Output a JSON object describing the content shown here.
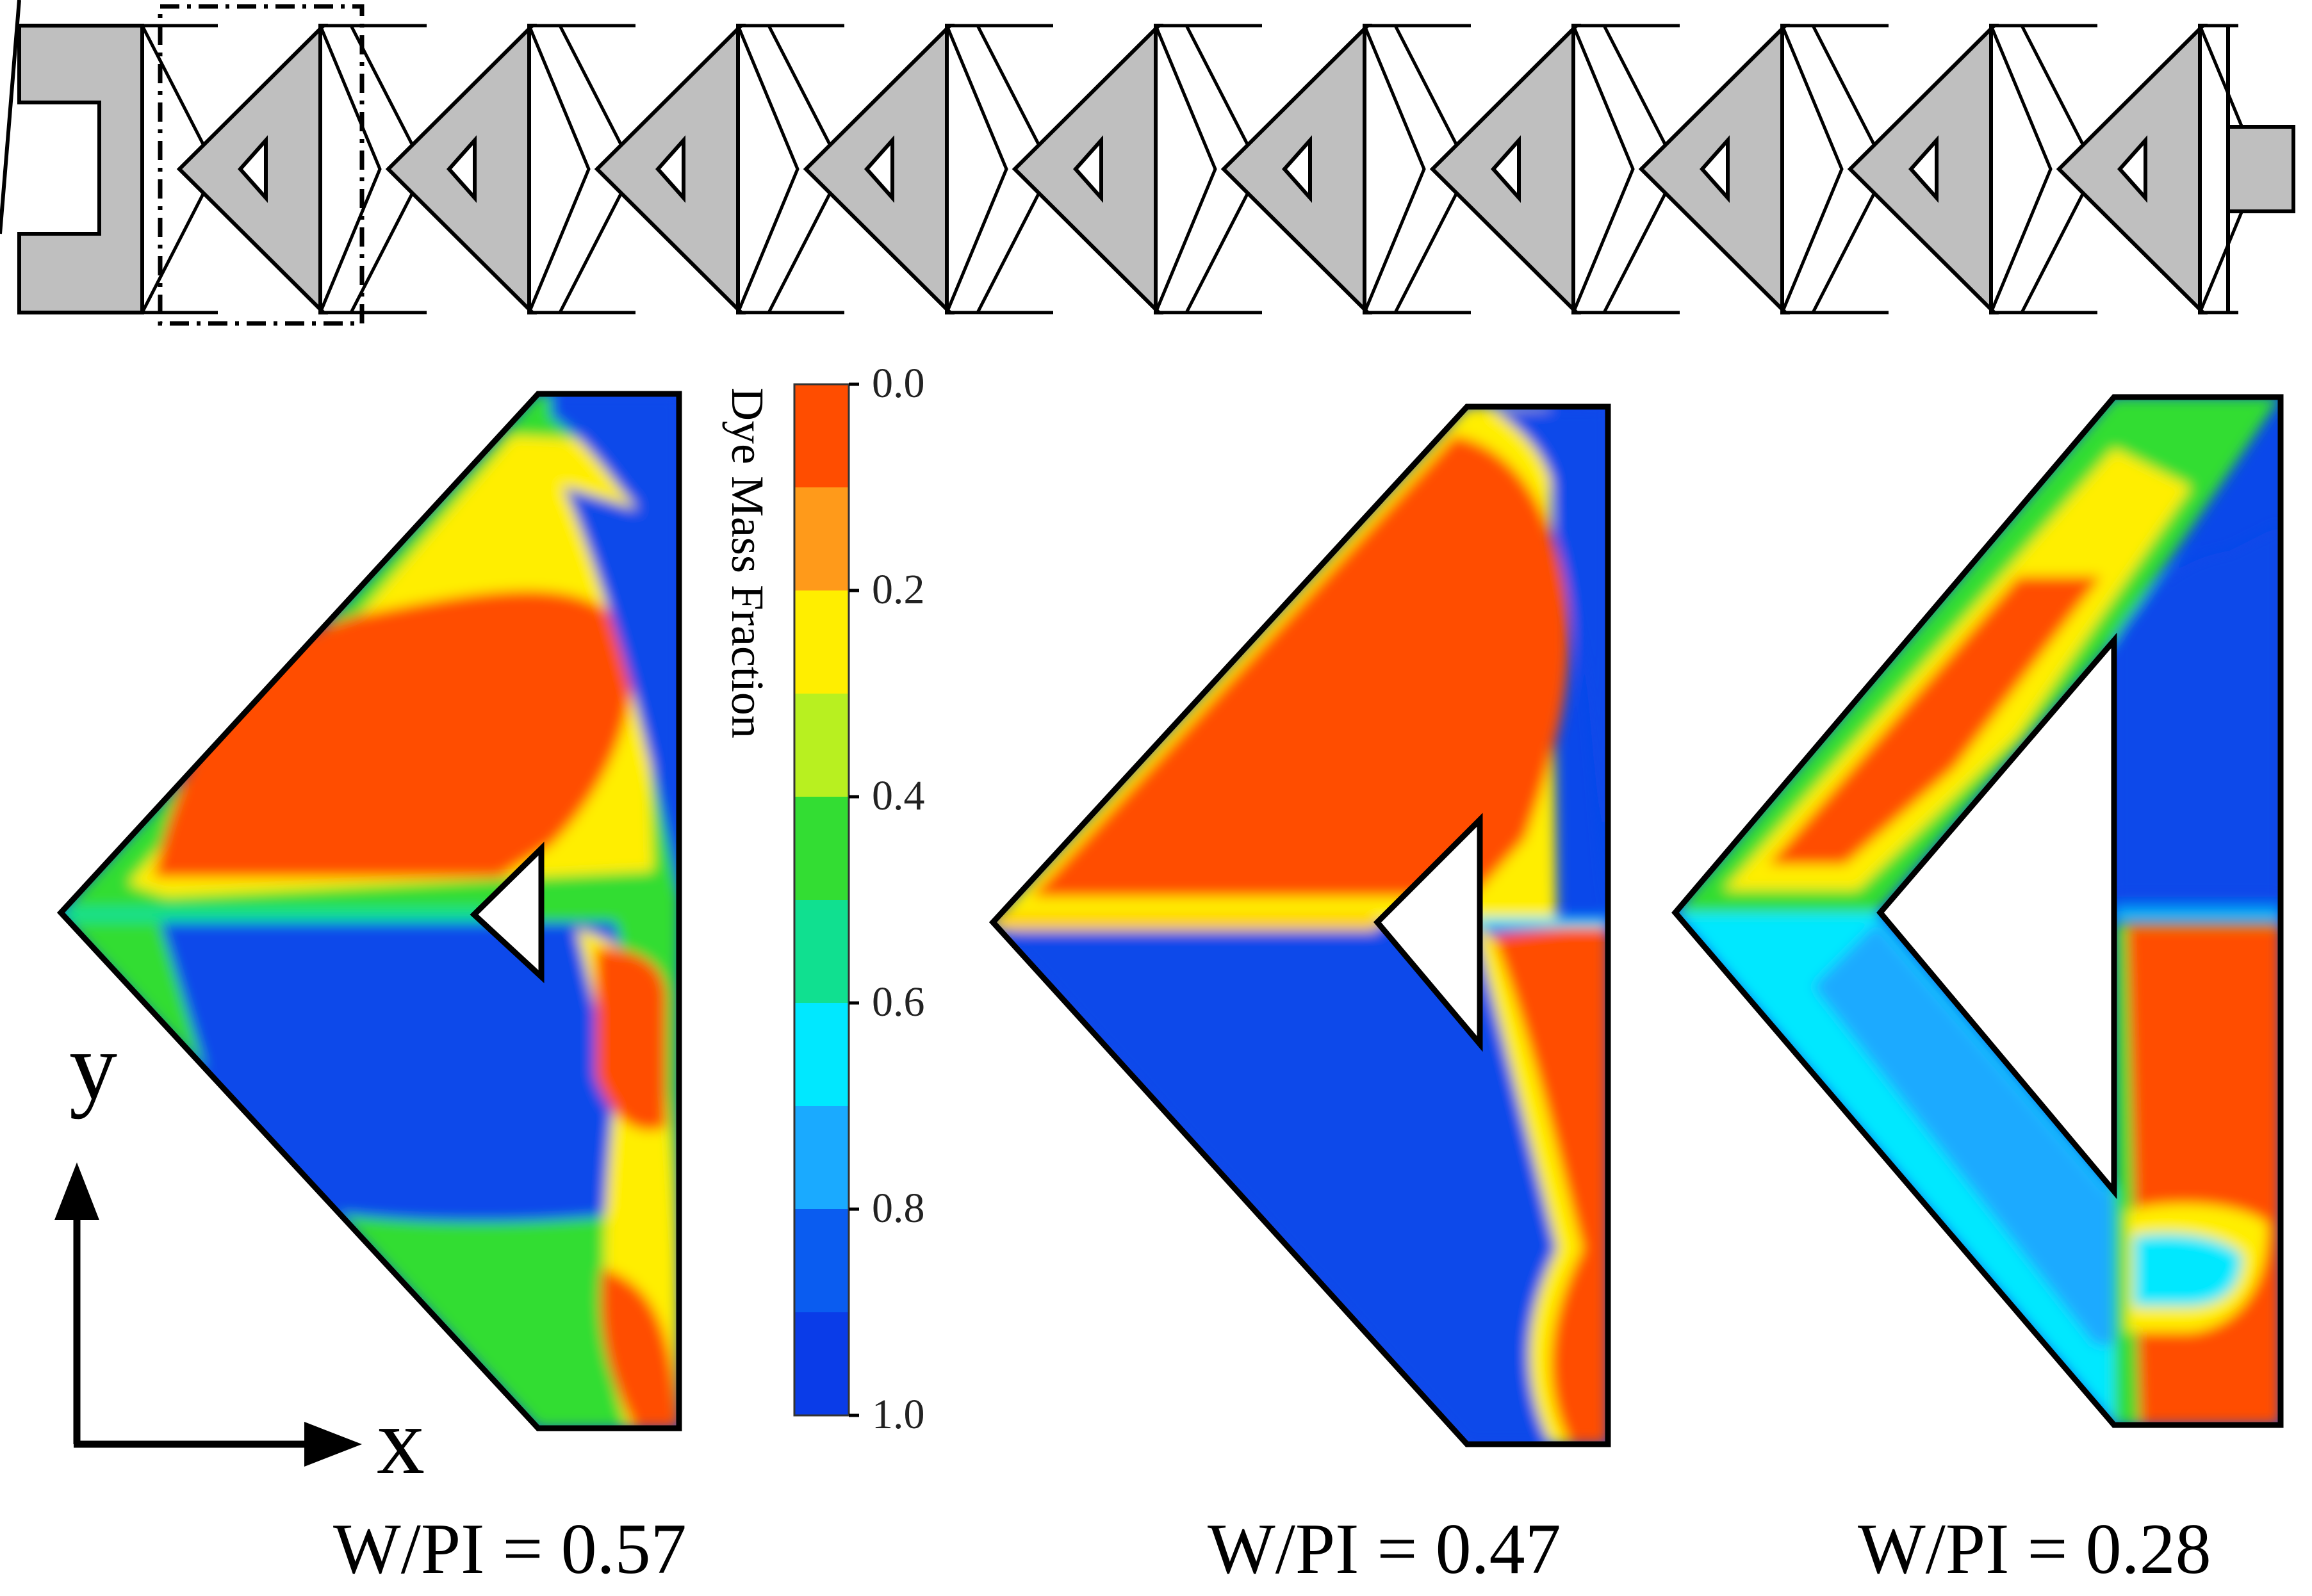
{
  "colorbar": {
    "title": "Dye Mass Fraction",
    "ticks": [
      "0.0",
      "0.2",
      "0.4",
      "0.6",
      "0.8",
      "1.0"
    ],
    "bands": [
      "#ff4d00",
      "#ff9a1a",
      "#ffee00",
      "#b8f020",
      "#33dd33",
      "#10e090",
      "#00e8ff",
      "#1aaaff",
      "#0a5cf0",
      "#0a3ce8"
    ]
  },
  "axes": {
    "x_label": "x",
    "y_label": "y"
  },
  "panels": [
    {
      "caption": "W/PI = 0.57"
    },
    {
      "caption": "W/PI = 0.47"
    },
    {
      "caption": "W/PI = 0.28"
    }
  ],
  "channel": {
    "unit_count": 10
  }
}
